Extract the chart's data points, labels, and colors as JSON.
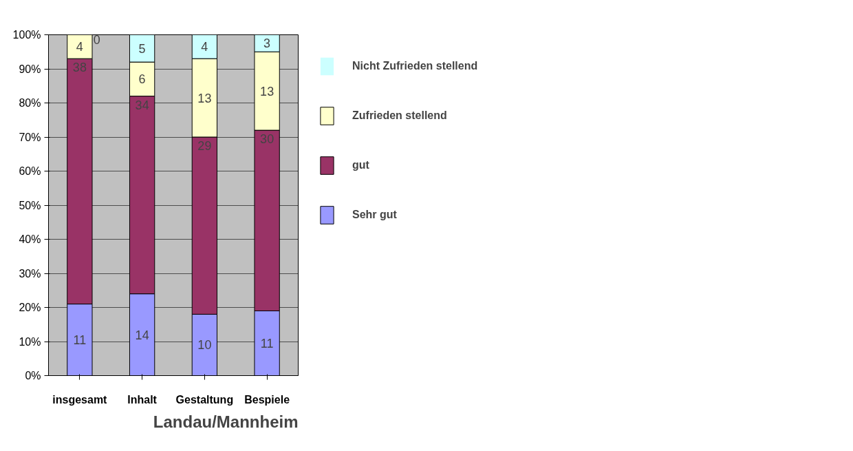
{
  "chart_data": {
    "type": "bar",
    "stacked": true,
    "categories": [
      "insgesamt",
      "Inhalt",
      "Gestaltung",
      "Bespiele"
    ],
    "series": [
      {
        "name": "Sehr gut",
        "color": "#9999ff",
        "values": [
          21,
          24,
          18,
          19
        ]
      },
      {
        "name": "gut",
        "color": "#993366",
        "values": [
          72,
          58,
          52,
          53
        ]
      },
      {
        "name": "Zufrieden stellend",
        "color": "#ffffcc",
        "values": [
          7,
          10,
          23,
          23
        ]
      },
      {
        "name": "Nicht Zufrieden stellend",
        "color": "#ccffff",
        "values": [
          0,
          8,
          7,
          5
        ]
      }
    ],
    "ylim": [
      0,
      100
    ],
    "yticks": [
      {
        "value": 0,
        "label": "0%"
      },
      {
        "value": 10,
        "label": "10%"
      },
      {
        "value": 20,
        "label": "20%"
      },
      {
        "value": 30,
        "label": "30%"
      },
      {
        "value": 40,
        "label": "40%"
      },
      {
        "value": 50,
        "label": "50%"
      },
      {
        "value": 60,
        "label": "60%"
      },
      {
        "value": 70,
        "label": "70%"
      },
      {
        "value": 80,
        "label": "80%"
      },
      {
        "value": 90,
        "label": "90%"
      },
      {
        "value": 100,
        "label": "100%"
      }
    ],
    "grid": "y",
    "legend": "right",
    "annotations": [
      {
        "text": "11",
        "x": "insgesamt",
        "y": 21
      },
      {
        "text": "38",
        "x": "insgesamt",
        "y": 93
      },
      {
        "text": "4",
        "x": "insgesamt",
        "y": 100
      },
      {
        "text": "0",
        "x": "insgesamt",
        "y": 100
      },
      {
        "text": "14",
        "x": "Inhalt",
        "y": 24
      },
      {
        "text": "34",
        "x": "Inhalt",
        "y": 82
      },
      {
        "text": "6",
        "x": "Inhalt",
        "y": 92
      },
      {
        "text": "5",
        "x": "Inhalt",
        "y": 100
      },
      {
        "text": "10",
        "x": "Gestaltung",
        "y": 18
      },
      {
        "text": "29",
        "x": "Gestaltung",
        "y": 70
      },
      {
        "text": "13",
        "x": "Gestaltung",
        "y": 93
      },
      {
        "text": "4",
        "x": "Gestaltung",
        "y": 100
      },
      {
        "text": "11",
        "x": "Bespiele",
        "y": 19
      },
      {
        "text": "30",
        "x": "Bespiele",
        "y": 72
      },
      {
        "text": "13",
        "x": "Bespiele",
        "y": 95
      },
      {
        "text": "3",
        "x": "Bespiele",
        "y": 100
      },
      "Landau/Mannheim"
    ]
  }
}
